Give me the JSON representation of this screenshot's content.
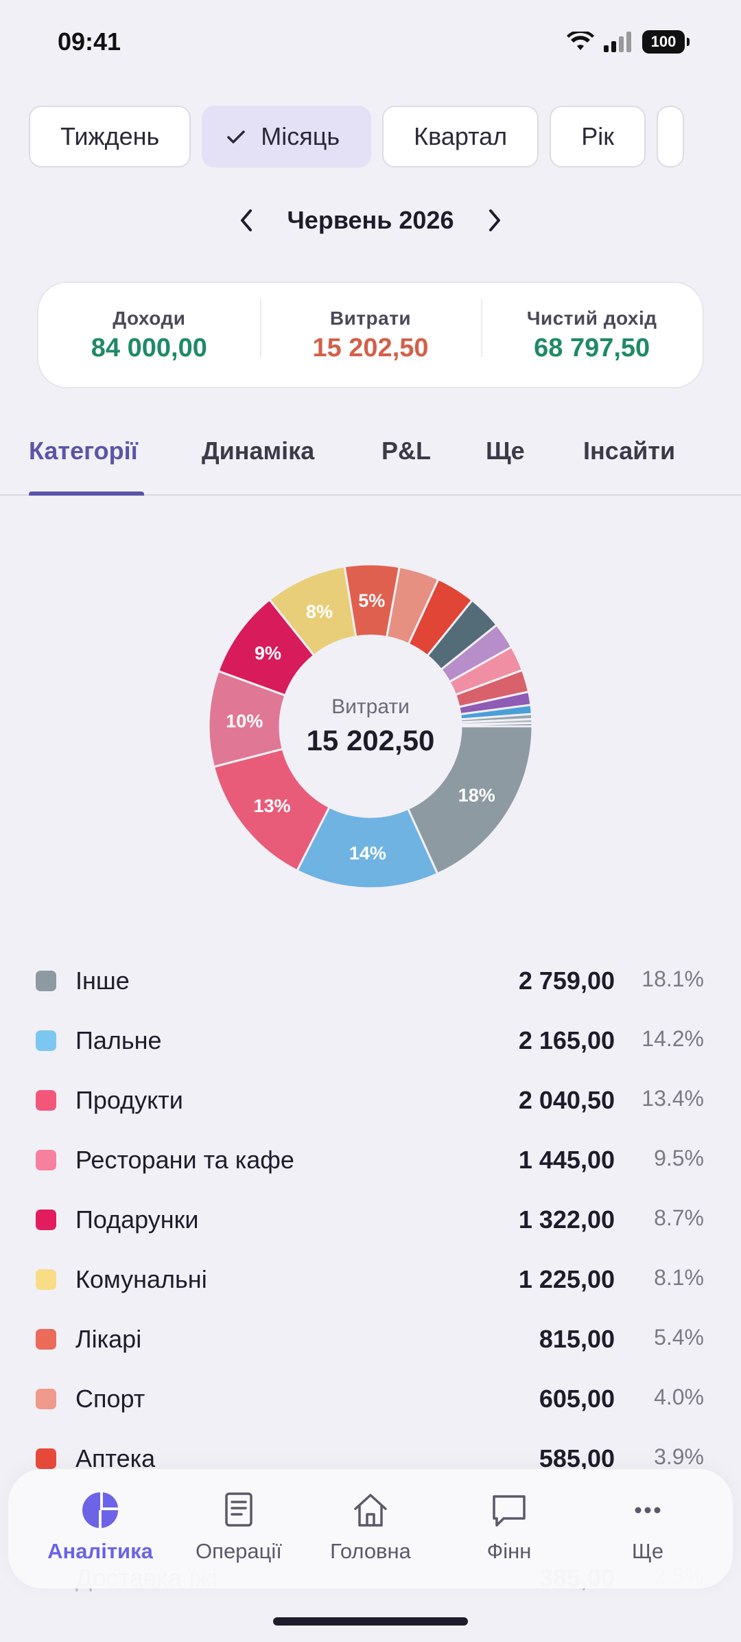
{
  "status": {
    "time": "09:41",
    "battery": "100"
  },
  "period_chips": [
    {
      "label": "Тиждень",
      "active": false
    },
    {
      "label": "Місяць",
      "active": true
    },
    {
      "label": "Квартал",
      "active": false
    },
    {
      "label": "Рік",
      "active": false
    }
  ],
  "month": {
    "label": "Червень 2026"
  },
  "summary": {
    "income_label": "Доходи",
    "income_value": "84 000,00",
    "expense_label": "Витрати",
    "expense_value": "15 202,50",
    "net_label": "Чистий дохід",
    "net_value": "68 797,50",
    "colors": {
      "income": "#1f8a63",
      "expense": "#d3604a",
      "net": "#1f8a63"
    }
  },
  "tabs": [
    {
      "label": "Категорії",
      "active": true
    },
    {
      "label": "Динаміка",
      "active": false
    },
    {
      "label": "P&L",
      "active": false
    },
    {
      "label": "Ще",
      "active": false
    },
    {
      "label": "Інсайти",
      "active": false
    }
  ],
  "chart_data": {
    "type": "pie",
    "center_label": "Витрати",
    "center_value": "15 202,50",
    "slices": [
      {
        "value": 18.1,
        "color": "#8e9aa2",
        "label": "18%"
      },
      {
        "value": 14.2,
        "color": "#6fb3e2",
        "label": "14%"
      },
      {
        "value": 13.4,
        "color": "#e85c7a",
        "label": "13%"
      },
      {
        "value": 9.5,
        "color": "#e07895",
        "label": "10%"
      },
      {
        "value": 8.7,
        "color": "#d81b5a",
        "label": "9%"
      },
      {
        "value": 8.1,
        "color": "#e9ce79",
        "label": "8%"
      },
      {
        "value": 5.4,
        "color": "#e0604f",
        "label": "5%"
      },
      {
        "value": 4.0,
        "color": "#e59081",
        "label": ""
      },
      {
        "value": 3.9,
        "color": "#e04535",
        "label": ""
      },
      {
        "value": 3.4,
        "color": "#546b78",
        "label": ""
      },
      {
        "value": 2.6,
        "color": "#b78ec9",
        "label": ""
      },
      {
        "value": 2.5,
        "color": "#f08fa4",
        "label": ""
      },
      {
        "value": 2.2,
        "color": "#d9616b",
        "label": ""
      },
      {
        "value": 1.3,
        "color": "#8e5bb5",
        "label": ""
      },
      {
        "value": 0.9,
        "color": "#4a9fd8",
        "label": ""
      },
      {
        "value": 0.5,
        "color": "#9aa4ad",
        "label": ""
      },
      {
        "value": 0.4,
        "color": "#b0b8c0",
        "label": ""
      },
      {
        "value": 0.3,
        "color": "#7f8a94",
        "label": ""
      }
    ]
  },
  "categories": [
    {
      "name": "Інше",
      "amount": "2 759,00",
      "pct": "18.1%",
      "color": "#8e9aa2"
    },
    {
      "name": "Пальне",
      "amount": "2 165,00",
      "pct": "14.2%",
      "color": "#7cc7f0"
    },
    {
      "name": "Продукти",
      "amount": "2 040,50",
      "pct": "13.4%",
      "color": "#f2577a"
    },
    {
      "name": "Ресторани та кафе",
      "amount": "1 445,00",
      "pct": "9.5%",
      "color": "#f7809e"
    },
    {
      "name": "Подарунки",
      "amount": "1 322,00",
      "pct": "8.7%",
      "color": "#e31c5f"
    },
    {
      "name": "Комунальні",
      "amount": "1 225,00",
      "pct": "8.1%",
      "color": "#f9dc86"
    },
    {
      "name": "Лікарі",
      "amount": "815,00",
      "pct": "5.4%",
      "color": "#eb6a5a"
    },
    {
      "name": "Спорт",
      "amount": "605,00",
      "pct": "4.0%",
      "color": "#ef9a8b"
    },
    {
      "name": "Аптека",
      "amount": "585,00",
      "pct": "3.9%",
      "color": "#e84a3a"
    },
    {
      "name": "Доставка їжі",
      "amount": "385,00",
      "pct": "2.5%",
      "color": "#f7b8c7"
    }
  ],
  "bottom_nav": [
    {
      "label": "Аналітика",
      "icon": "analytics-icon",
      "active": true
    },
    {
      "label": "Операції",
      "icon": "receipt-icon",
      "active": false
    },
    {
      "label": "Головна",
      "icon": "home-icon",
      "active": false
    },
    {
      "label": "Фінн",
      "icon": "chat-icon",
      "active": false
    },
    {
      "label": "Ще",
      "icon": "more-icon",
      "active": false
    }
  ]
}
